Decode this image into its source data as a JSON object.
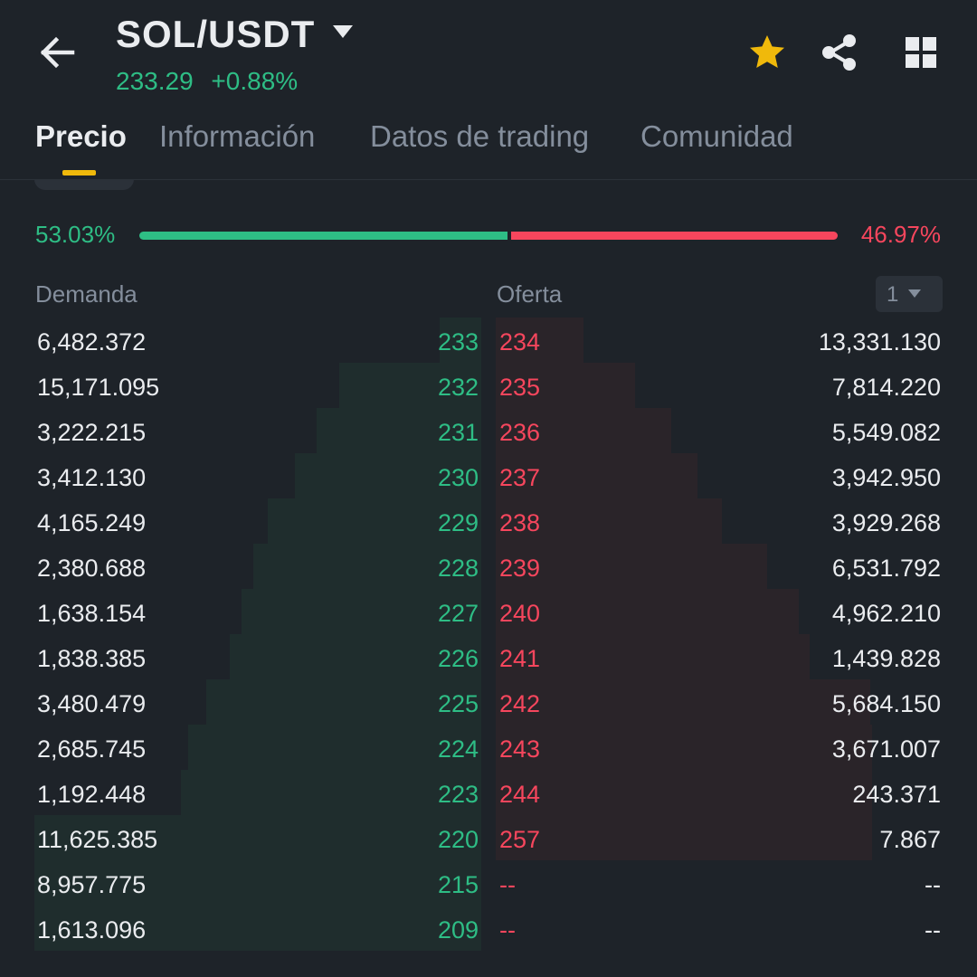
{
  "header": {
    "pair": "SOL/USDT",
    "last_price": "233.29",
    "change_pct": "+0.88%",
    "icons": {
      "back": "arrow-left-icon",
      "pair_menu": "caret-down-icon",
      "favorite": "star-icon",
      "share": "share-icon",
      "layout": "grid-icon"
    }
  },
  "tabs": [
    {
      "label": "Precio",
      "active": true
    },
    {
      "label": "Información",
      "active": false
    },
    {
      "label": "Datos de trading",
      "active": false
    },
    {
      "label": "Comunidad",
      "active": false
    }
  ],
  "ratio": {
    "buy_pct": "53.03%",
    "sell_pct": "46.97%",
    "buy_fraction": 0.5303
  },
  "orderbook": {
    "bid_header": "Demanda",
    "ask_header": "Oferta",
    "aggregation": "1",
    "rows": [
      {
        "bid_qty": "6,482.372",
        "bid_price": "233",
        "ask_price": "234",
        "ask_qty": "13,331.130"
      },
      {
        "bid_qty": "15,171.095",
        "bid_price": "232",
        "ask_price": "235",
        "ask_qty": "7,814.220"
      },
      {
        "bid_qty": "3,222.215",
        "bid_price": "231",
        "ask_price": "236",
        "ask_qty": "5,549.082"
      },
      {
        "bid_qty": "3,412.130",
        "bid_price": "230",
        "ask_price": "237",
        "ask_qty": "3,942.950"
      },
      {
        "bid_qty": "4,165.249",
        "bid_price": "229",
        "ask_price": "238",
        "ask_qty": "3,929.268"
      },
      {
        "bid_qty": "2,380.688",
        "bid_price": "228",
        "ask_price": "239",
        "ask_qty": "6,531.792"
      },
      {
        "bid_qty": "1,638.154",
        "bid_price": "227",
        "ask_price": "240",
        "ask_qty": "4,962.210"
      },
      {
        "bid_qty": "1,838.385",
        "bid_price": "226",
        "ask_price": "241",
        "ask_qty": "1,439.828"
      },
      {
        "bid_qty": "3,480.479",
        "bid_price": "225",
        "ask_price": "242",
        "ask_qty": "5,684.150"
      },
      {
        "bid_qty": "2,685.745",
        "bid_price": "224",
        "ask_price": "243",
        "ask_qty": "3,671.007"
      },
      {
        "bid_qty": "1,192.448",
        "bid_price": "223",
        "ask_price": "244",
        "ask_qty": "243.371"
      },
      {
        "bid_qty": "11,625.385",
        "bid_price": "220",
        "ask_price": "257",
        "ask_qty": "7.867"
      },
      {
        "bid_qty": "8,957.775",
        "bid_price": "215",
        "ask_price": "--",
        "ask_qty": "--"
      },
      {
        "bid_qty": "1,613.096",
        "bid_price": "209",
        "ask_price": "--",
        "ask_qty": "--"
      }
    ]
  },
  "colors": {
    "background": "#1e2329",
    "buy": "#2ebd85",
    "sell": "#f6465d",
    "accent": "#f0b90b",
    "muted": "#848e9c"
  }
}
